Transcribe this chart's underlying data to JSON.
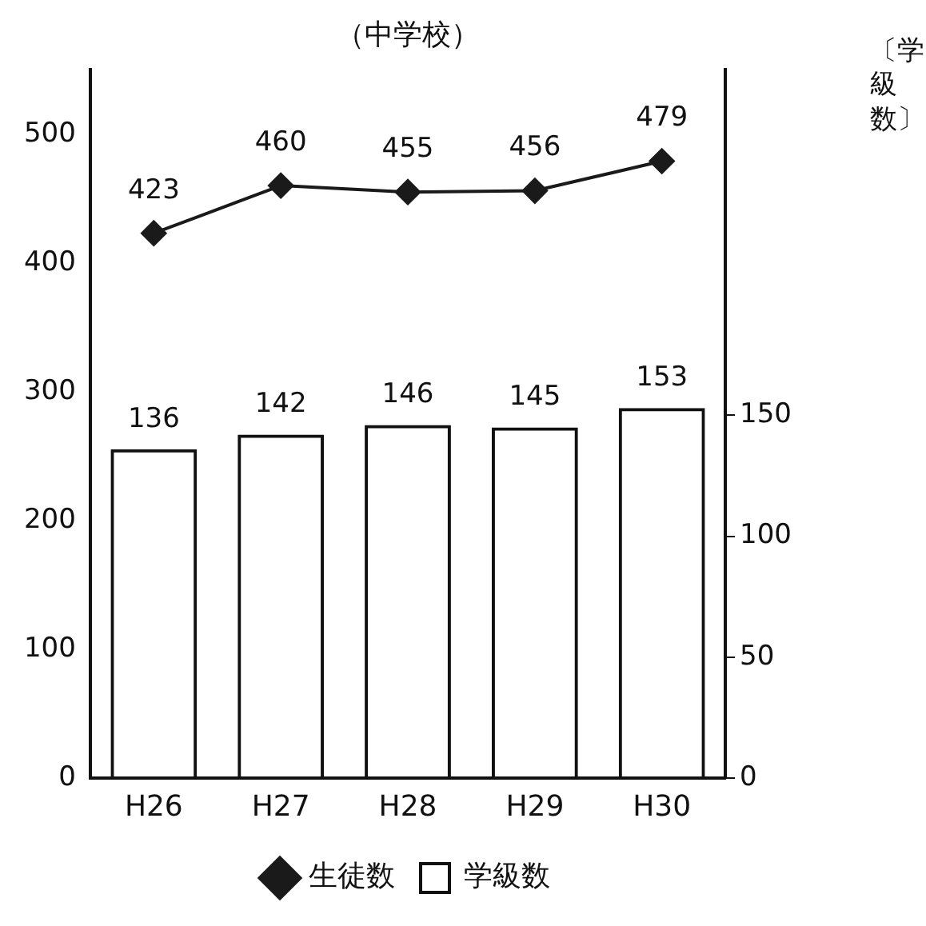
{
  "chart_data": {
    "type": "bar",
    "title": "（中学校）",
    "y2label": "〔学級数〕",
    "categories": [
      "H26",
      "H27",
      "H28",
      "H29",
      "H30"
    ],
    "series": [
      {
        "name": "学級数",
        "axis": "y2",
        "color": "#111111",
        "values": [
          136,
          142,
          146,
          145,
          153
        ]
      },
      {
        "name": "生徒数",
        "type": "line",
        "axis": "y",
        "color": "#1a1a1a",
        "values": [
          423,
          460,
          455,
          456,
          479
        ]
      }
    ],
    "ylim": [
      0,
      550
    ],
    "yticks": [
      0,
      100,
      200,
      300,
      400,
      500
    ],
    "y2lim": [
      0,
      293
    ],
    "y2ticks": [
      0,
      50,
      100,
      150
    ],
    "data_labels": true,
    "grid": false,
    "legend": "bottom",
    "marker": "diamond",
    "line_style": "solid"
  }
}
